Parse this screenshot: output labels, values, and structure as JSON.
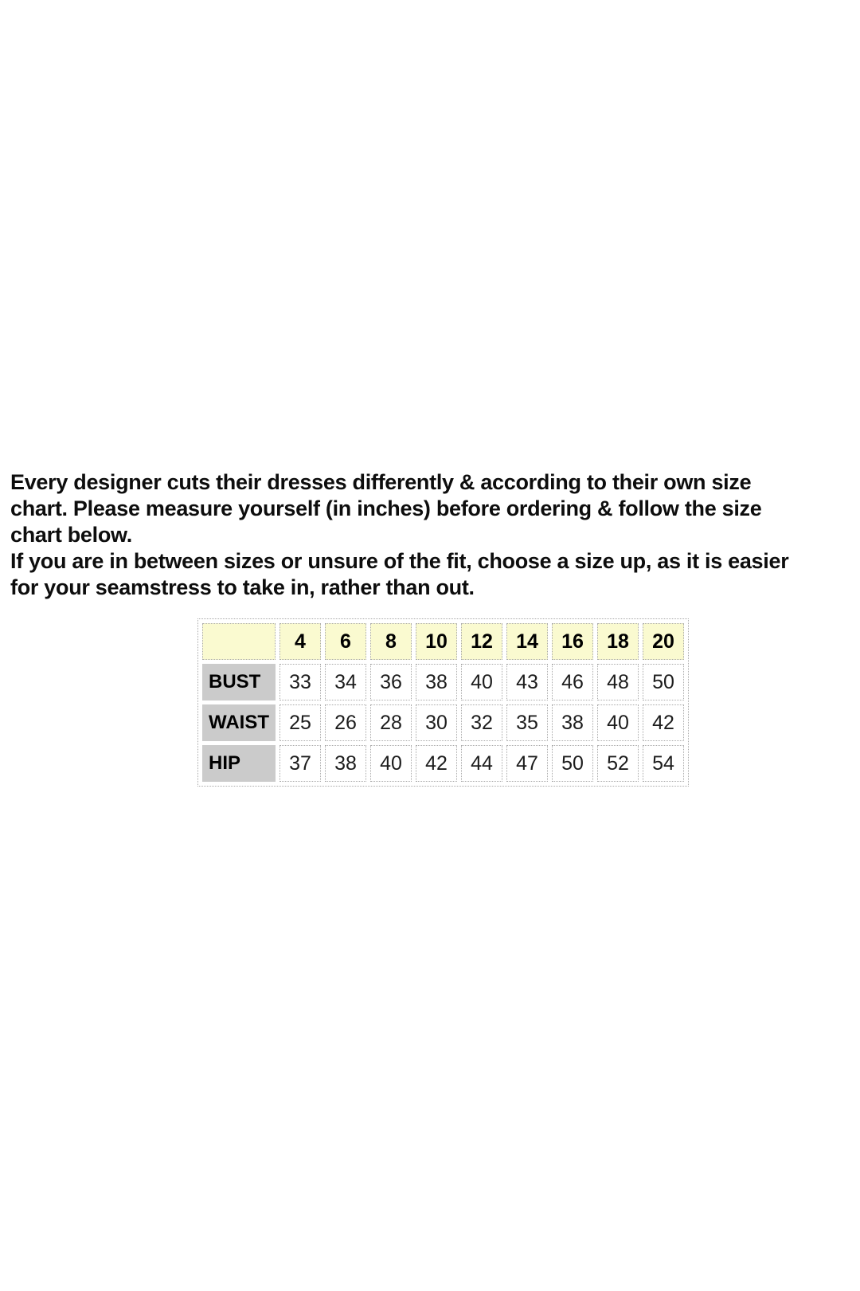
{
  "intro": {
    "paragraph1": "Every designer cuts their dresses differently & according to their own size\nchart. Please measure yourself (in inches) before ordering & follow the size\nchart below.",
    "paragraph2": "If you are in between sizes or unsure of the fit, choose a size up, as it is easier\nfor your seamstress to take in, rather than out."
  },
  "size_chart": {
    "colors": {
      "header_bg": "#fafad0",
      "label_bg": "#cbcbcb",
      "border": "#aaaaaa"
    },
    "corner_label": "",
    "sizes": [
      "4",
      "6",
      "8",
      "10",
      "12",
      "14",
      "16",
      "18",
      "20"
    ],
    "rows": [
      {
        "label": "BUST",
        "values": [
          "33",
          "34",
          "36",
          "38",
          "40",
          "43",
          "46",
          "48",
          "50"
        ]
      },
      {
        "label": "WAIST",
        "values": [
          "25",
          "26",
          "28",
          "30",
          "32",
          "35",
          "38",
          "40",
          "42"
        ]
      },
      {
        "label": "HIP",
        "values": [
          "37",
          "38",
          "40",
          "42",
          "44",
          "47",
          "50",
          "52",
          "54"
        ]
      }
    ]
  },
  "chart_data": {
    "type": "table",
    "title": "",
    "categories": [
      "4",
      "6",
      "8",
      "10",
      "12",
      "14",
      "16",
      "18",
      "20"
    ],
    "series": [
      {
        "name": "BUST",
        "values": [
          33,
          34,
          36,
          38,
          40,
          43,
          46,
          48,
          50
        ]
      },
      {
        "name": "WAIST",
        "values": [
          25,
          26,
          28,
          30,
          32,
          35,
          38,
          40,
          42
        ]
      },
      {
        "name": "HIP",
        "values": [
          37,
          38,
          40,
          42,
          44,
          47,
          50,
          52,
          54
        ]
      }
    ]
  }
}
